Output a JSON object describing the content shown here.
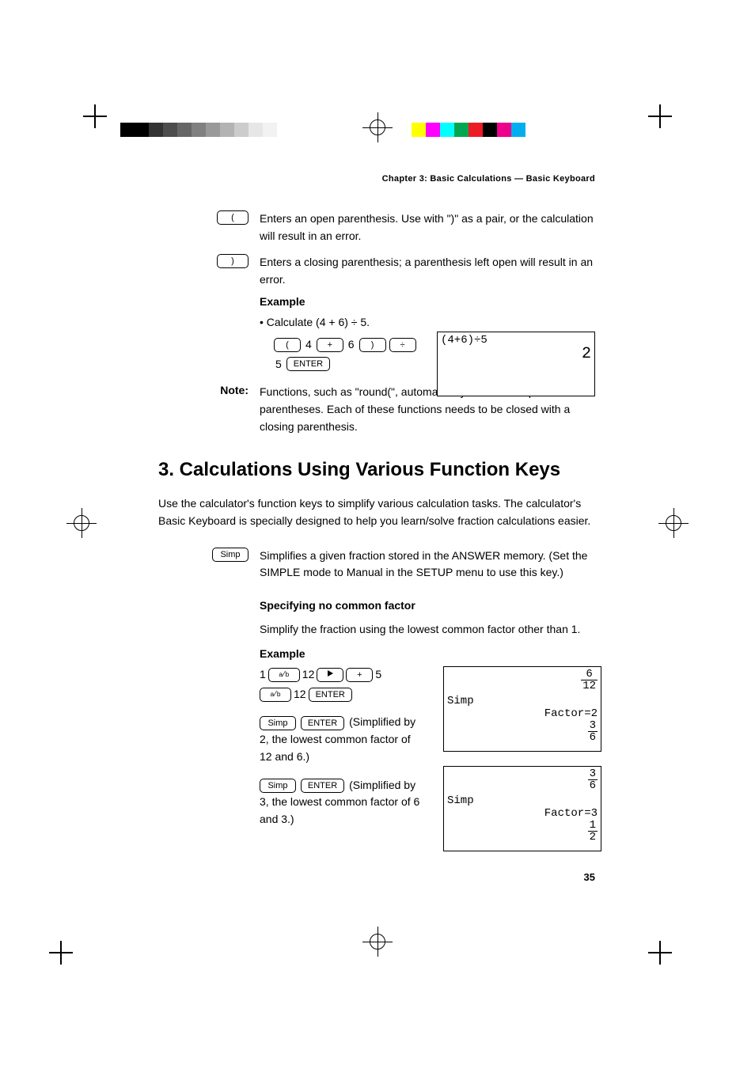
{
  "chapter_header": "Chapter 3: Basic Calculations — Basic Keyboard",
  "colorbar_left": [
    "#000000",
    "#000000",
    "#333333",
    "#4d4d4d",
    "#666666",
    "#808080",
    "#999999",
    "#b3b3b3",
    "#cccccc",
    "#e6e6e6",
    "#f2f2f2",
    "#ffffff",
    "#ffffff"
  ],
  "colorbar_right": [
    "#ffff00",
    "#ff00ff",
    "#00ffff",
    "#00a651",
    "#ed1c24",
    "#000000",
    "#ec008c",
    "#00aeef",
    "#ffffff"
  ],
  "open_paren": {
    "key": "(",
    "desc": "Enters an open parenthesis. Use with \")\" as a pair, or the calculation will result in an error."
  },
  "close_paren": {
    "key": ")",
    "desc": "Enters a closing parenthesis; a parenthesis left open will result in an error.",
    "example_label": "Example",
    "bullet": "• Calculate (4 + 6) ÷ 5.",
    "seq_vals": {
      "n1": "4",
      "n2": "6",
      "n3": "5"
    },
    "seq_keys": {
      "open": "(",
      "plus": "+",
      "close": ")",
      "div": "÷",
      "enter": "ENTER"
    }
  },
  "screen1": {
    "expr": "(4+6)÷5",
    "result": "2"
  },
  "note": {
    "label": "Note:",
    "text": "Functions, such as \"round(\", automatically include an open parentheses. Each of these functions needs to be closed with a closing parenthesis."
  },
  "section_title": "3. Calculations Using Various Function Keys",
  "intro": "Use the calculator's function keys to simplify various calculation tasks. The calculator's Basic Keyboard is specially designed to help you learn/solve fraction calculations easier.",
  "simp": {
    "key": "Simp",
    "desc": "Simplifies a given fraction stored in the ANSWER memory. (Set the SIMPLE mode to Manual in the SETUP menu to use this key.)",
    "subhead": "Specifying no common factor",
    "subdesc": "Simplify the fraction using the lowest common factor other than 1.",
    "example_label": "Example",
    "seq1": {
      "n1": "1",
      "n2": "12",
      "n3": "5",
      "n4": "12",
      "plus": "+",
      "enter": "ENTER"
    },
    "step1_suffix": " (Simplified by 2, the lowest common factor of 12 and 6.)",
    "step2_suffix": " (Simplified by 3, the lowest common factor of 6 and 3.)",
    "enter": "ENTER",
    "simp": "Simp"
  },
  "screen2": {
    "frac1_n": "6",
    "frac1_d": "12",
    "label": "Simp",
    "factor": "Factor=2",
    "frac2_n": "3",
    "frac2_d": "6"
  },
  "screen3": {
    "frac1_n": "3",
    "frac1_d": "6",
    "label": "Simp",
    "factor": "Factor=3",
    "frac2_n": "1",
    "frac2_d": "2"
  },
  "page_number": "35"
}
